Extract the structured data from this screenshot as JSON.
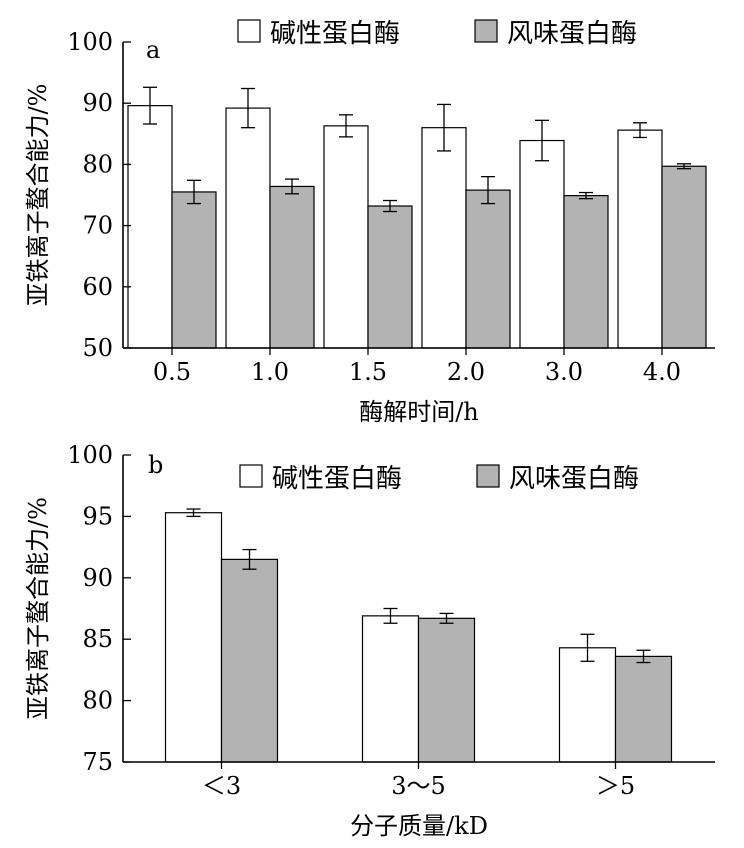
{
  "chart_data": [
    {
      "panel": "a",
      "type": "bar",
      "xlabel": "酶解时间/h",
      "ylabel": "亚铁离子螯合能力/%",
      "ylim": [
        50,
        100
      ],
      "yticks": [
        50,
        60,
        70,
        80,
        90,
        100
      ],
      "categories": [
        "0.5",
        "1.0",
        "1.5",
        "2.0",
        "3.0",
        "4.0"
      ],
      "series": [
        {
          "name": "碱性蛋白酶",
          "color": "#ffffff",
          "values": [
            89.6,
            89.2,
            86.3,
            86.0,
            83.9,
            85.6
          ],
          "errors": [
            3.0,
            3.2,
            1.8,
            3.8,
            3.3,
            1.2
          ]
        },
        {
          "name": "风味蛋白酶",
          "color": "#b3b3b3",
          "values": [
            75.5,
            76.4,
            73.2,
            75.8,
            74.9,
            79.7
          ],
          "errors": [
            1.9,
            1.2,
            0.9,
            2.2,
            0.5,
            0.4
          ]
        }
      ],
      "legend_position": "top"
    },
    {
      "panel": "b",
      "type": "bar",
      "xlabel": "分子质量/kD",
      "ylabel": "亚铁离子螯合能力/%",
      "ylim": [
        75,
        100
      ],
      "yticks": [
        75,
        80,
        85,
        90,
        95,
        100
      ],
      "categories": [
        "＜3",
        "3～5",
        "＞5"
      ],
      "series": [
        {
          "name": "碱性蛋白酶",
          "color": "#ffffff",
          "values": [
            95.3,
            86.9,
            84.3
          ],
          "errors": [
            0.3,
            0.6,
            1.1
          ]
        },
        {
          "name": "风味蛋白酶",
          "color": "#b3b3b3",
          "values": [
            91.5,
            86.7,
            83.6
          ],
          "errors": [
            0.8,
            0.4,
            0.5
          ]
        }
      ],
      "legend_position": "top-right"
    }
  ]
}
